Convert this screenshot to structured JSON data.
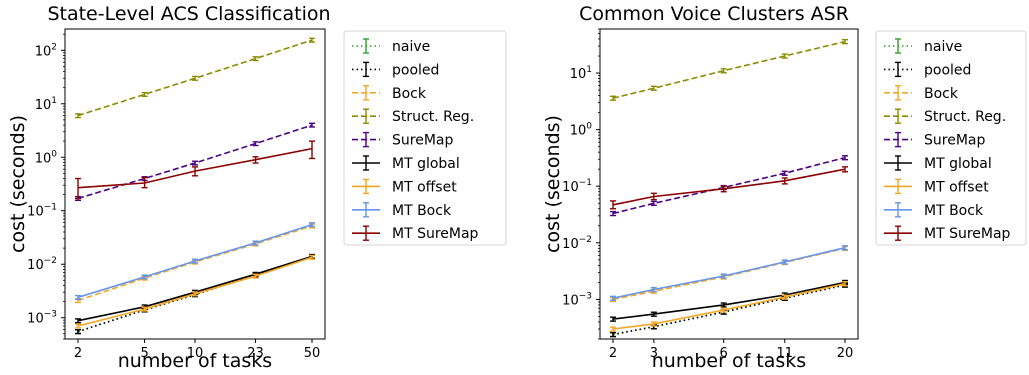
{
  "chart_data": [
    {
      "type": "line",
      "title": "State-Level ACS Classification",
      "xlabel": "number of tasks",
      "ylabel": "cost (seconds)",
      "xscale": "log",
      "yscale": "log",
      "x": [
        2,
        5,
        10,
        23,
        50
      ],
      "xticks": [
        "2",
        "5",
        "10",
        "23",
        "50"
      ],
      "ylim": [
        0.0004,
        250
      ],
      "yticks": [
        {
          "base": "10",
          "exp": "−3",
          "value": 0.001
        },
        {
          "base": "10",
          "exp": "−2",
          "value": 0.01
        },
        {
          "base": "10",
          "exp": "−1",
          "value": 0.1
        },
        {
          "base": "10",
          "exp": "0",
          "value": 1
        },
        {
          "base": "10",
          "exp": "1",
          "value": 10
        },
        {
          "base": "10",
          "exp": "2",
          "value": 100
        }
      ],
      "legend_position": "outside-right",
      "series": [
        {
          "name": "naive",
          "style": "dotted",
          "color": "#2ca02c",
          "values": [
            0.00055,
            0.0014,
            0.0027,
            0.0063,
            0.014
          ]
        },
        {
          "name": "pooled",
          "style": "dotted",
          "color": "#000000",
          "values": [
            0.00055,
            0.0014,
            0.0027,
            0.0063,
            0.014
          ]
        },
        {
          "name": "Bock",
          "style": "dashed",
          "color": "#f5a623",
          "values": [
            0.0021,
            0.0055,
            0.011,
            0.024,
            0.052
          ]
        },
        {
          "name": "Struct. Reg.",
          "style": "dashed",
          "color": "#8b8b00",
          "values": [
            6.0,
            15.0,
            30.0,
            70.0,
            155.0
          ]
        },
        {
          "name": "SureMap",
          "style": "dashed",
          "color": "#4b0082",
          "values": [
            0.17,
            0.4,
            0.78,
            1.8,
            4.0
          ]
        },
        {
          "name": "MT global",
          "style": "solid",
          "color": "#000000",
          "values": [
            0.00088,
            0.0016,
            0.003,
            0.0065,
            0.014
          ]
        },
        {
          "name": "MT offset",
          "style": "solid",
          "color": "#f5a623",
          "values": [
            0.0007,
            0.00145,
            0.0028,
            0.006,
            0.0135
          ]
        },
        {
          "name": "MT Bock",
          "style": "solid",
          "color": "#6495ed",
          "values": [
            0.0024,
            0.0058,
            0.0115,
            0.025,
            0.055
          ]
        },
        {
          "name": "MT SureMap",
          "style": "solid",
          "color": "#8b0000",
          "values": [
            0.27,
            0.33,
            0.55,
            0.9,
            1.45
          ],
          "errors_low": [
            0.17,
            0.27,
            0.45,
            0.78,
            0.95
          ],
          "errors_high": [
            0.4,
            0.42,
            0.66,
            1.02,
            2.0
          ]
        }
      ]
    },
    {
      "type": "line",
      "title": "Common Voice Clusters ASR",
      "xlabel": "number of tasks",
      "ylabel": "cost (seconds)",
      "xscale": "log",
      "yscale": "log",
      "x": [
        2,
        3,
        6,
        11,
        20
      ],
      "xticks": [
        "2",
        "3",
        "6",
        "11",
        "20"
      ],
      "ylim": [
        0.0002,
        60
      ],
      "yticks": [
        {
          "base": "10",
          "exp": "−3",
          "value": 0.001
        },
        {
          "base": "10",
          "exp": "−2",
          "value": 0.01
        },
        {
          "base": "10",
          "exp": "−1",
          "value": 0.1
        },
        {
          "base": "10",
          "exp": "0",
          "value": 1
        },
        {
          "base": "10",
          "exp": "1",
          "value": 10
        }
      ],
      "legend_position": "outside-right",
      "series": [
        {
          "name": "naive",
          "style": "dotted",
          "color": "#2ca02c",
          "values": [
            0.00024,
            0.00033,
            0.0006,
            0.00105,
            0.0018
          ]
        },
        {
          "name": "pooled",
          "style": "dotted",
          "color": "#000000",
          "values": [
            0.00024,
            0.00033,
            0.0006,
            0.00105,
            0.0018
          ]
        },
        {
          "name": "Bock",
          "style": "dashed",
          "color": "#f5a623",
          "values": [
            0.001,
            0.0014,
            0.0025,
            0.0045,
            0.008
          ]
        },
        {
          "name": "Struct. Reg.",
          "style": "dashed",
          "color": "#8b8b00",
          "values": [
            3.6,
            5.4,
            11.0,
            20.0,
            36.0
          ]
        },
        {
          "name": "SureMap",
          "style": "dashed",
          "color": "#4b0082",
          "values": [
            0.033,
            0.05,
            0.095,
            0.17,
            0.32
          ]
        },
        {
          "name": "MT global",
          "style": "solid",
          "color": "#000000",
          "values": [
            0.00045,
            0.00055,
            0.0008,
            0.0012,
            0.002
          ]
        },
        {
          "name": "MT offset",
          "style": "solid",
          "color": "#f5a623",
          "values": [
            0.0003,
            0.00037,
            0.00065,
            0.0011,
            0.0019
          ]
        },
        {
          "name": "MT Bock",
          "style": "solid",
          "color": "#6495ed",
          "values": [
            0.00105,
            0.0015,
            0.0026,
            0.0046,
            0.0082
          ]
        },
        {
          "name": "MT SureMap",
          "style": "solid",
          "color": "#8b0000",
          "values": [
            0.047,
            0.066,
            0.09,
            0.125,
            0.2
          ],
          "errors_low": [
            0.04,
            0.058,
            0.08,
            0.11,
            0.18
          ],
          "errors_high": [
            0.055,
            0.075,
            0.1,
            0.14,
            0.22
          ]
        }
      ]
    }
  ]
}
